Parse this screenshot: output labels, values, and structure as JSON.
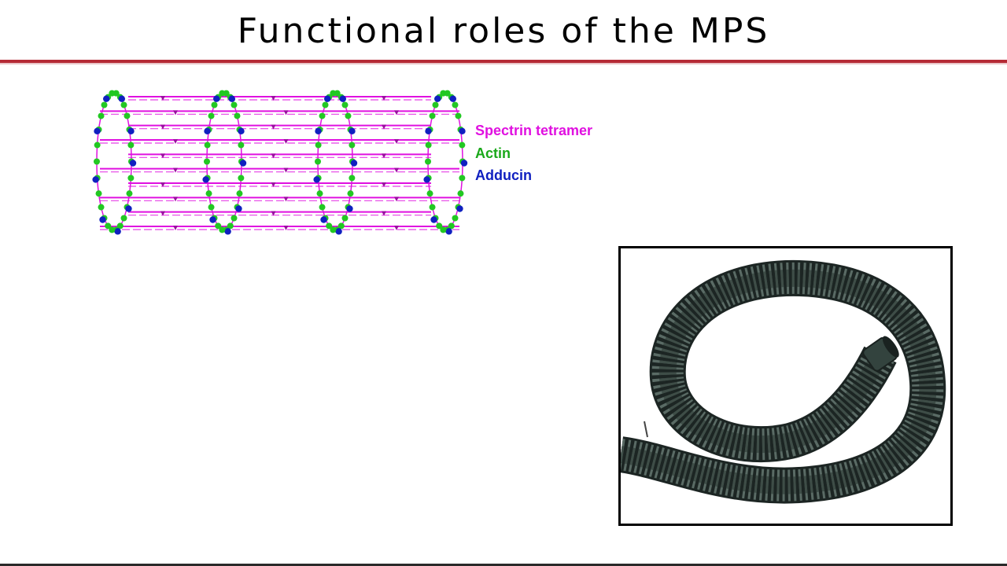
{
  "slide": {
    "title": "Functional roles of the MPS"
  },
  "legend": {
    "items": [
      {
        "label": "Spectrin tetramer",
        "color": "#e010e0"
      },
      {
        "label": "Actin",
        "color": "#1aa81a"
      },
      {
        "label": "Adducin",
        "color": "#1020c0"
      }
    ]
  },
  "colors": {
    "title_rule": "#b52a35",
    "spectrin": "#e010e0",
    "actin": "#22c822",
    "adducin": "#1020c0",
    "hose": "#2c3a36"
  },
  "icons": {
    "mps_diagram": "periodic-cytoskeleton-cylinder",
    "hose_photo": "corrugated-hose-photo"
  }
}
